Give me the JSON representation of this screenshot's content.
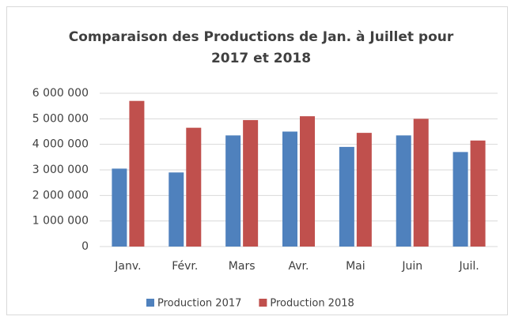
{
  "chart_data": {
    "type": "bar",
    "title": [
      "Comparaison des Productions de Jan. à Juillet pour",
      "2017 et 2018"
    ],
    "categories": [
      "Janv.",
      "Févr.",
      "Mars",
      "Avr.",
      "Mai",
      "Juin",
      "Juil."
    ],
    "series": [
      {
        "name": "Production 2017",
        "color": "#4f81bd",
        "values": [
          3050000,
          2900000,
          4350000,
          4500000,
          3900000,
          4350000,
          3700000
        ]
      },
      {
        "name": "Production 2018",
        "color": "#c0504d",
        "values": [
          5700000,
          4650000,
          4950000,
          5100000,
          4450000,
          5000000,
          4150000
        ]
      }
    ],
    "ylim": [
      0,
      6000000
    ],
    "yticks": [
      0,
      {
        "value": 1000000,
        "label": "1 000 000"
      },
      {
        "value": 2000000,
        "label": "2 000 000"
      },
      {
        "value": 3000000,
        "label": "3 000 000"
      },
      {
        "value": 4000000,
        "label": "4 000 000"
      },
      {
        "value": 5000000,
        "label": "5 000 000"
      },
      {
        "value": 6000000,
        "label": "6 000 000"
      }
    ],
    "grid": true,
    "legend": "bottom"
  }
}
